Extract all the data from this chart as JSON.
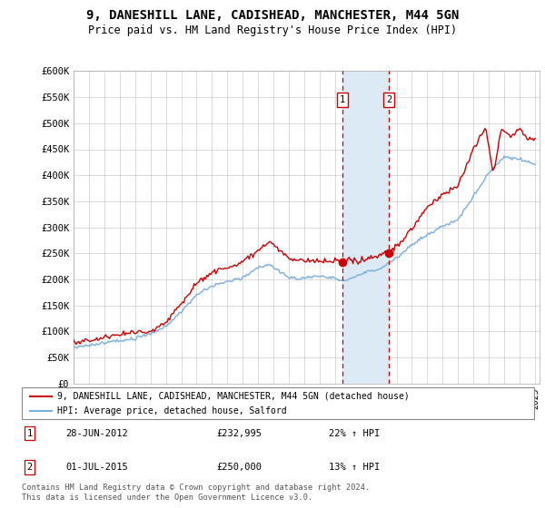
{
  "title": "9, DANESHILL LANE, CADISHEAD, MANCHESTER, M44 5GN",
  "subtitle": "Price paid vs. HM Land Registry's House Price Index (HPI)",
  "ylim": [
    0,
    600000
  ],
  "yticks": [
    0,
    50000,
    100000,
    150000,
    200000,
    250000,
    300000,
    350000,
    400000,
    450000,
    500000,
    550000,
    600000
  ],
  "ytick_labels": [
    "£0",
    "£50K",
    "£100K",
    "£150K",
    "£200K",
    "£250K",
    "£300K",
    "£350K",
    "£400K",
    "£450K",
    "£500K",
    "£550K",
    "£600K"
  ],
  "sale1_date": 2012.49,
  "sale1_price": 232995,
  "sale2_date": 2015.5,
  "sale2_price": 250000,
  "red_line_color": "#cc0000",
  "blue_line_color": "#7aade0",
  "shade_color": "#dceaf5",
  "marker_box_color": "#cc0000",
  "legend_entry1": "9, DANESHILL LANE, CADISHEAD, MANCHESTER, M44 5GN (detached house)",
  "legend_entry2": "HPI: Average price, detached house, Salford",
  "footer": "Contains HM Land Registry data © Crown copyright and database right 2024.\nThis data is licensed under the Open Government Licence v3.0.",
  "label1_text": "28-JUN-2012",
  "label1_price": "£232,995",
  "label1_pct": "22% ↑ HPI",
  "label2_text": "01-JUL-2015",
  "label2_price": "£250,000",
  "label2_pct": "13% ↑ HPI"
}
